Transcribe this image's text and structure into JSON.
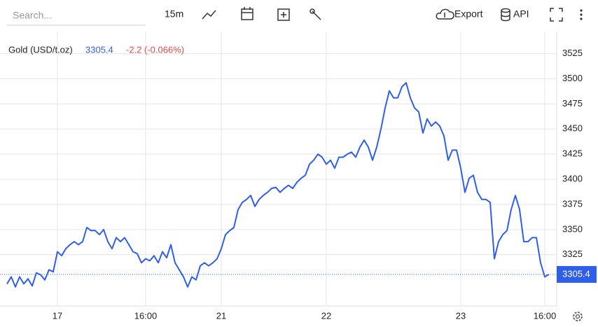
{
  "toolbar": {
    "search_placeholder": "Search...",
    "interval": "15m",
    "export": "Export",
    "api": "API"
  },
  "chart_data": {
    "type": "line",
    "legend_title": "Gold (USD/t.oz)",
    "change_text": "-2.2 (-0.066%)",
    "categories": [
      null,
      null,
      null,
      null,
      null,
      null,
      null,
      null,
      null,
      null,
      null,
      null,
      "17",
      null,
      null,
      null,
      null,
      null,
      null,
      null,
      null,
      null,
      null,
      null,
      null,
      null,
      null,
      null,
      null,
      null,
      null,
      null,
      null,
      "16:00",
      null,
      null,
      null,
      null,
      null,
      null,
      null,
      null,
      null,
      null,
      null,
      null,
      null,
      null,
      null,
      null,
      null,
      "21",
      null,
      null,
      null,
      null,
      null,
      null,
      null,
      null,
      null,
      null,
      null,
      null,
      null,
      null,
      null,
      null,
      null,
      null,
      null,
      null,
      null,
      null,
      null,
      null,
      "22",
      null,
      null,
      null,
      null,
      null,
      null,
      null,
      null,
      null,
      null,
      null,
      null,
      null,
      null,
      null,
      null,
      null,
      null,
      null,
      null,
      null,
      null,
      null,
      null,
      null,
      null,
      null,
      null,
      null,
      null,
      null,
      "23",
      null,
      null,
      null,
      null,
      null,
      null,
      null,
      null,
      null,
      null,
      null,
      null,
      null,
      null,
      null,
      null,
      null,
      null,
      null,
      "16:00",
      null
    ],
    "series": [
      {
        "name": "Gold (USD/t.oz)",
        "color": "#2f5fe8",
        "values": [
          3296,
          3303,
          3293,
          3303,
          3296,
          3301,
          3294,
          3307,
          3305,
          3300,
          3310,
          3308,
          3328,
          3324,
          3331,
          3335,
          3338,
          3335,
          3338,
          3352,
          3349,
          3349,
          3345,
          3350,
          3338,
          3331,
          3342,
          3338,
          3342,
          3335,
          3328,
          3326,
          3317,
          3321,
          3319,
          3324,
          3317,
          3328,
          3322,
          3335,
          3317,
          3310,
          3303,
          3293,
          3303,
          3300,
          3314,
          3317,
          3314,
          3317,
          3321,
          3331,
          3345,
          3349,
          3352,
          3370,
          3377,
          3380,
          3384,
          3373,
          3380,
          3384,
          3387,
          3391,
          3392,
          3387,
          3391,
          3394,
          3391,
          3397,
          3401,
          3404,
          3415,
          3419,
          3425,
          3422,
          3415,
          3419,
          3411,
          3422,
          3422,
          3425,
          3427,
          3422,
          3432,
          3439,
          3432,
          3419,
          3432,
          3450,
          3471,
          3488,
          3481,
          3481,
          3492,
          3496,
          3481,
          3471,
          3467,
          3446,
          3460,
          3453,
          3457,
          3453,
          3443,
          3419,
          3429,
          3429,
          3411,
          3387,
          3401,
          3404,
          3387,
          3380,
          3380,
          3377,
          3321,
          3338,
          3345,
          3349,
          3370,
          3384,
          3370,
          3338,
          3338,
          3342,
          3342,
          3317,
          3303,
          3305.4
        ]
      }
    ],
    "ylim": [
      3274,
      3547
    ],
    "yticks": [
      3325,
      3350,
      3375,
      3400,
      3425,
      3450,
      3475,
      3500,
      3525
    ],
    "grid": true,
    "last_tag_color": "#2f5fe8",
    "change_color": "#e04b4b"
  }
}
